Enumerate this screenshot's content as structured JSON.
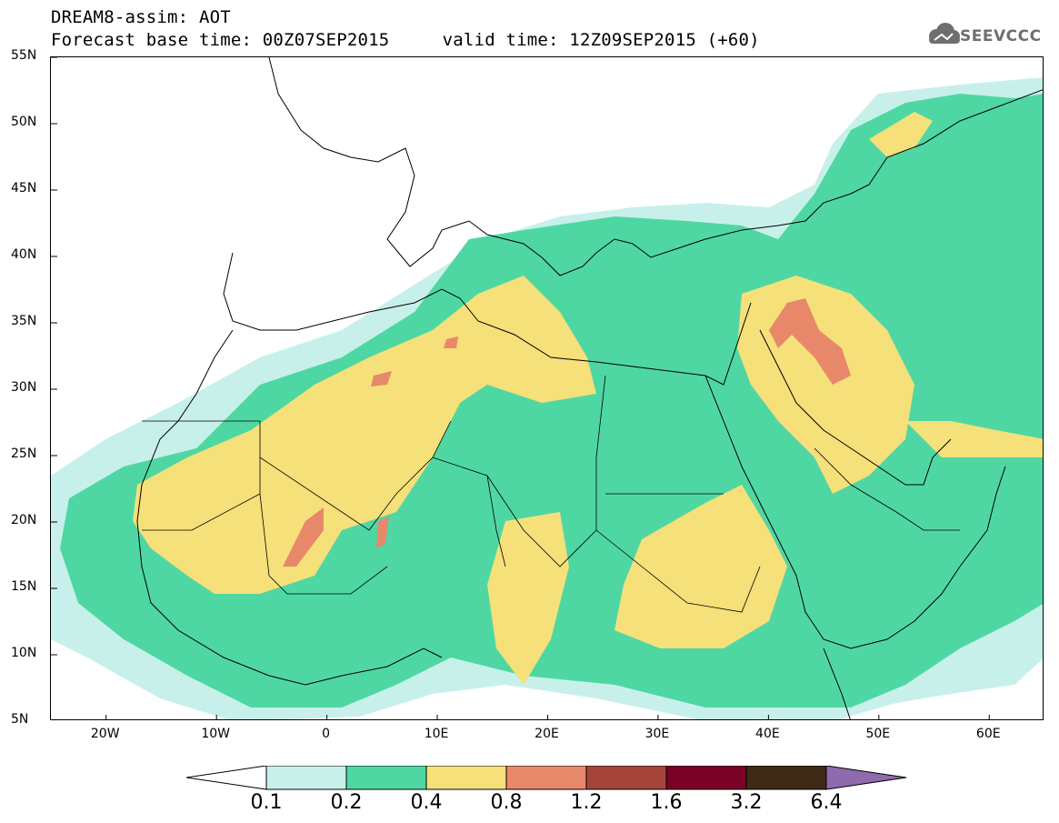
{
  "header": {
    "title_line1": "DREAM8-assim: AOT",
    "title_line2": "Forecast base time: 00Z07SEP2015     valid time: 12Z09SEP2015 (+60)",
    "logo_text": "SEEVCCC"
  },
  "map": {
    "lon_range": [
      -25,
      65
    ],
    "lat_range": [
      5,
      55
    ],
    "lat_labels": [
      "55N",
      "50N",
      "45N",
      "40N",
      "35N",
      "30N",
      "25N",
      "20N",
      "15N",
      "10N",
      "5N"
    ],
    "lat_values": [
      55,
      50,
      45,
      40,
      35,
      30,
      25,
      20,
      15,
      10,
      5
    ],
    "lon_labels": [
      "20W",
      "10W",
      "0",
      "10E",
      "20E",
      "30E",
      "40E",
      "50E",
      "60E"
    ],
    "lon_values": [
      -20,
      -10,
      0,
      10,
      20,
      30,
      40,
      50,
      60
    ]
  },
  "colorbar": {
    "levels": [
      "0.1",
      "0.2",
      "0.4",
      "0.8",
      "1.2",
      "1.6",
      "3.2",
      "6.4"
    ],
    "colors": [
      "#c8f0eb",
      "#4fd7a3",
      "#f5e07a",
      "#e8886a",
      "#a5453b",
      "#7a0026",
      "#3d2a15",
      "#8f6aaf"
    ]
  }
}
